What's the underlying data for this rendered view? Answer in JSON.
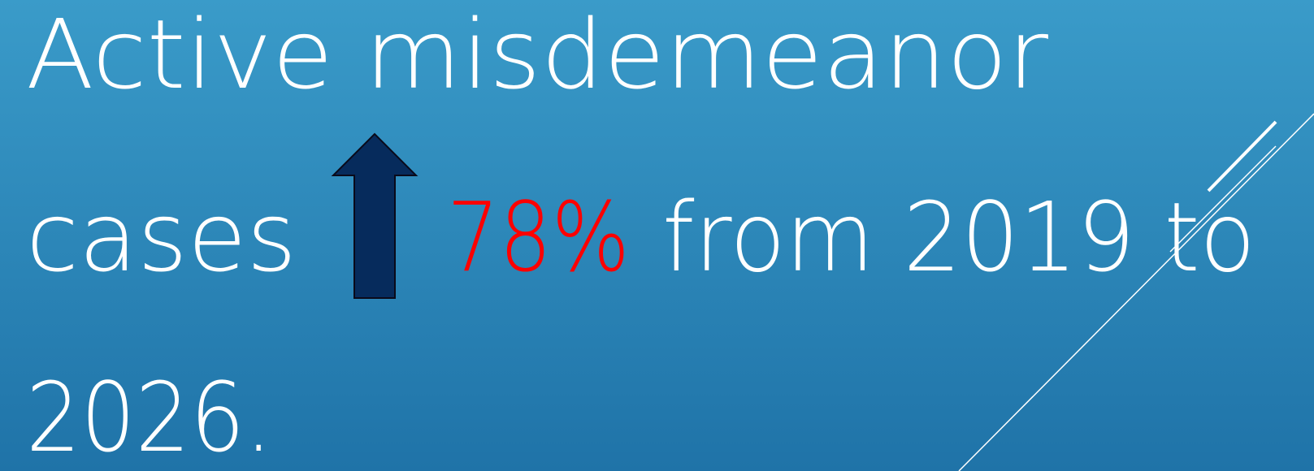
{
  "slide": {
    "lines": [
      {
        "text": "Active misdemeanor"
      },
      {
        "text": "cases",
        "highlight": "78%",
        "rest": "from 2019 to"
      },
      {
        "text": "2026."
      }
    ]
  }
}
